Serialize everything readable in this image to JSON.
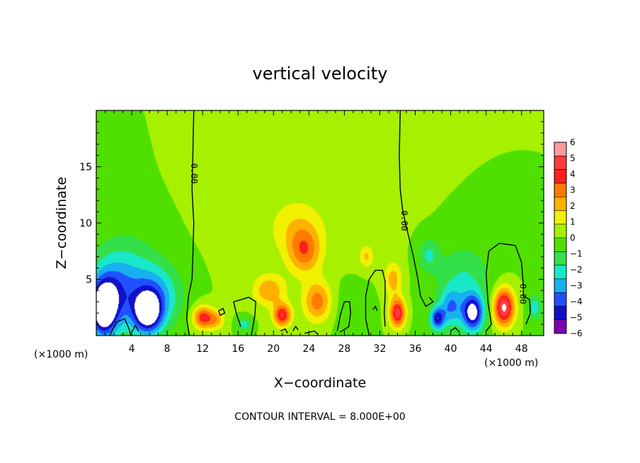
{
  "chart_data": {
    "type": "heatmap",
    "title": "vertical velocity",
    "xlabel": "X−coordinate",
    "ylabel": "Z−coordinate",
    "x_unit": "(×1000 m)",
    "x_unit_right": "(×1000 m)",
    "xlim": [
      0,
      50.5
    ],
    "ylim": [
      0,
      20
    ],
    "x_ticks": [
      "4",
      "8",
      "12",
      "16",
      "20",
      "24",
      "28",
      "32",
      "36",
      "40",
      "44",
      "48"
    ],
    "x_tick_values": [
      4,
      8,
      12,
      16,
      20,
      24,
      28,
      32,
      36,
      40,
      44,
      48
    ],
    "y_ticks": [
      "5",
      "10",
      "15"
    ],
    "y_tick_values": [
      5,
      10,
      15
    ],
    "colorbar_labels": [
      "6",
      "5",
      "4",
      "3",
      "2",
      "1",
      "0",
      "−1",
      "−2",
      "−3",
      "−4",
      "−5",
      "−6"
    ],
    "colorbar_colors": [
      "#ff9a9a",
      "#ff3a3a",
      "#ff2020",
      "#ff7a00",
      "#ffb000",
      "#f0f000",
      "#a6f000",
      "#4fe000",
      "#33e04a",
      "#19e8c8",
      "#18b0f0",
      "#2050ff",
      "#1010c8",
      "#7a00b0"
    ],
    "contour_label": "0.00",
    "contour_interval_note": "CONTOUR INTERVAL = 8.000E+00",
    "blobs": [
      {
        "x": 0.8,
        "z": 2.3,
        "value": -6.5,
        "rx": 1.4,
        "rz": 2.2
      },
      {
        "x": 1.6,
        "z": 3.5,
        "value": -3.5,
        "rx": 2.4,
        "rz": 3.0
      },
      {
        "x": 5.8,
        "z": 2.0,
        "value": -6.0,
        "rx": 1.6,
        "rz": 1.8
      },
      {
        "x": 6.5,
        "z": 3.5,
        "value": -3.5,
        "rx": 3.0,
        "rz": 2.8
      },
      {
        "x": 3.5,
        "z": 6.0,
        "value": -1.5,
        "rx": 3.5,
        "rz": 3.5
      },
      {
        "x": 12.0,
        "z": 1.6,
        "value": 4.5,
        "rx": 1.1,
        "rz": 1.0
      },
      {
        "x": 13.5,
        "z": 1.4,
        "value": 2.5,
        "rx": 1.0,
        "rz": 0.9
      },
      {
        "x": 16.7,
        "z": 1.0,
        "value": -2.5,
        "rx": 0.8,
        "rz": 0.6
      },
      {
        "x": 19.5,
        "z": 4.0,
        "value": 2.8,
        "rx": 1.8,
        "rz": 1.4
      },
      {
        "x": 21.0,
        "z": 1.8,
        "value": 5.0,
        "rx": 1.0,
        "rz": 1.0
      },
      {
        "x": 23.5,
        "z": 7.5,
        "value": 3.2,
        "rx": 1.8,
        "rz": 2.0
      },
      {
        "x": 25.0,
        "z": 3.0,
        "value": 3.5,
        "rx": 1.6,
        "rz": 1.8
      },
      {
        "x": 22.5,
        "z": 9.5,
        "value": 1.5,
        "rx": 3.0,
        "rz": 2.5
      },
      {
        "x": 30.5,
        "z": 7.0,
        "value": 2.0,
        "rx": 0.8,
        "rz": 1.0
      },
      {
        "x": 28.5,
        "z": 2.5,
        "value": -0.7,
        "rx": 2.5,
        "rz": 2.5
      },
      {
        "x": 34.0,
        "z": 2.0,
        "value": 5.5,
        "rx": 0.9,
        "rz": 1.3
      },
      {
        "x": 33.5,
        "z": 5.0,
        "value": 2.5,
        "rx": 1.0,
        "rz": 1.5
      },
      {
        "x": 37.5,
        "z": 7.2,
        "value": -2.0,
        "rx": 1.2,
        "rz": 1.5
      },
      {
        "x": 38.5,
        "z": 1.5,
        "value": -5.0,
        "rx": 0.8,
        "rz": 1.0
      },
      {
        "x": 40.0,
        "z": 2.5,
        "value": -3.0,
        "rx": 1.2,
        "rz": 1.6
      },
      {
        "x": 42.5,
        "z": 2.0,
        "value": -6.0,
        "rx": 1.2,
        "rz": 1.6
      },
      {
        "x": 41.5,
        "z": 5.0,
        "value": -1.8,
        "rx": 3.0,
        "rz": 3.0
      },
      {
        "x": 46.0,
        "z": 2.5,
        "value": 6.5,
        "rx": 1.2,
        "rz": 1.7
      },
      {
        "x": 49.5,
        "z": 2.5,
        "value": -2.5,
        "rx": 0.8,
        "rz": 1.2
      }
    ]
  }
}
